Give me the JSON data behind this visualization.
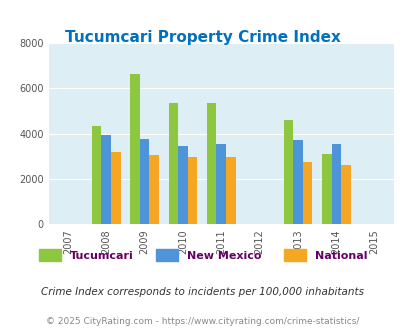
{
  "title": "Tucumcari Property Crime Index",
  "years": [
    2007,
    2008,
    2009,
    2010,
    2011,
    2012,
    2013,
    2014,
    2015
  ],
  "data_years": [
    2008,
    2009,
    2010,
    2011,
    2013,
    2014
  ],
  "tucumcari": [
    4350,
    6650,
    5350,
    5350,
    4600,
    3100
  ],
  "new_mexico": [
    3950,
    3750,
    3450,
    3550,
    3700,
    3550
  ],
  "national": [
    3200,
    3050,
    2950,
    2950,
    2750,
    2600
  ],
  "colors": {
    "tucumcari": "#8dc63f",
    "new_mexico": "#4d94d9",
    "national": "#f5a623"
  },
  "ylim": [
    0,
    8000
  ],
  "yticks": [
    0,
    2000,
    4000,
    6000,
    8000
  ],
  "background_color": "#deeef5",
  "title_color": "#0070c0",
  "subtitle": "Crime Index corresponds to incidents per 100,000 inhabitants",
  "footer": "© 2025 CityRating.com - https://www.cityrating.com/crime-statistics/",
  "legend_labels": [
    "Tucumcari",
    "New Mexico",
    "National"
  ],
  "bar_width": 0.25
}
